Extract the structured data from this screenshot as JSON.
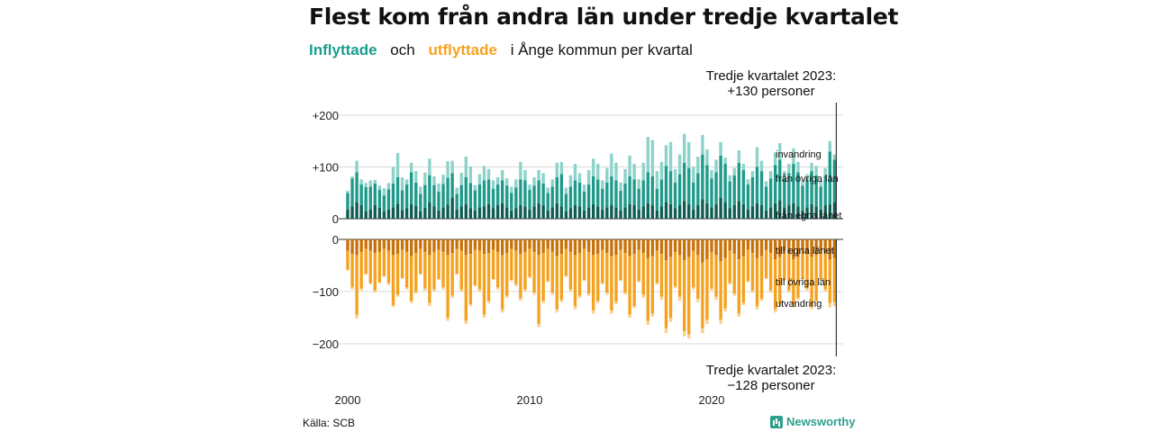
{
  "title": "Flest kom från andra län under tredje kvartalet",
  "subtitle": {
    "in_label": "Inflyttade",
    "and": "och",
    "out_label": "utflyttade",
    "rest": "i Ånge kommun per kvartal"
  },
  "annotations": {
    "top": [
      "Tredje kvartalet 2023:",
      "+130 personer"
    ],
    "bottom": [
      "Tredje kvartalet 2023:",
      "−128 personer"
    ]
  },
  "source": "Källa: SCB",
  "brand": "Newsworthy",
  "colors": {
    "in_egna": "#0e5c52",
    "in_ovriga": "#1f9a8a",
    "in_invandring": "#8dd3c9",
    "out_egna": "#c8720a",
    "out_ovriga": "#f5a21e",
    "out_utvandring": "#fbd08f",
    "grid": "#d9d9d9"
  },
  "chart_data": {
    "type": "bar",
    "stacked": true,
    "x_start": 2000,
    "periods_per_year": 4,
    "x_ticks": [
      "2000",
      "2010",
      "2020"
    ],
    "y_ticks": [
      "+200",
      "+100",
      "0",
      "0",
      "−100",
      "−200"
    ],
    "ylim_in": [
      0,
      220
    ],
    "ylim_out": [
      -220,
      0
    ],
    "grid": true,
    "series_labels": [
      "invandring",
      "från övriga län",
      "från egna länet",
      "till egna länet",
      "till övriga län",
      "utvandring"
    ],
    "in_egna": [
      18,
      24,
      32,
      26,
      15,
      18,
      26,
      21,
      14,
      18,
      22,
      29,
      17,
      20,
      28,
      25,
      14,
      21,
      32,
      24,
      16,
      22,
      27,
      40,
      18,
      24,
      28,
      20,
      16,
      22,
      24,
      28,
      20,
      26,
      30,
      22,
      16,
      20,
      26,
      24,
      18,
      24,
      30,
      26,
      16,
      22,
      30,
      24,
      14,
      20,
      26,
      24,
      16,
      22,
      28,
      24,
      18,
      22,
      26,
      22,
      16,
      22,
      28,
      26,
      18,
      24,
      30,
      26,
      16,
      24,
      32,
      28,
      20,
      26,
      34,
      28,
      18,
      26,
      38,
      30,
      22,
      28,
      40,
      32,
      20,
      26,
      34,
      28,
      18,
      24,
      30,
      26,
      16,
      22,
      30,
      36,
      22,
      26,
      30,
      24,
      16,
      22,
      28,
      24,
      18,
      26,
      28,
      32
    ],
    "in_ovriga": [
      32,
      54,
      58,
      40,
      46,
      44,
      42,
      35,
      31,
      39,
      46,
      51,
      38,
      46,
      62,
      45,
      34,
      44,
      52,
      41,
      36,
      45,
      52,
      48,
      30,
      41,
      52,
      49,
      39,
      44,
      50,
      48,
      38,
      40,
      44,
      42,
      34,
      40,
      50,
      50,
      38,
      40,
      44,
      42,
      34,
      40,
      50,
      62,
      34,
      42,
      48,
      46,
      36,
      44,
      54,
      52,
      40,
      48,
      56,
      52,
      38,
      46,
      54,
      50,
      40,
      50,
      60,
      56,
      42,
      52,
      70,
      64,
      50,
      60,
      74,
      70,
      52,
      62,
      86,
      74,
      56,
      62,
      82,
      74,
      52,
      58,
      74,
      66,
      48,
      56,
      70,
      66,
      46,
      56,
      74,
      78,
      56,
      62,
      76,
      66,
      48,
      54,
      64,
      60,
      44,
      58,
      102,
      82
    ],
    "in_invandring": [
      4,
      4,
      22,
      10,
      8,
      12,
      7,
      8,
      14,
      12,
      32,
      47,
      25,
      10,
      18,
      22,
      14,
      24,
      32,
      17,
      16,
      18,
      32,
      24,
      12,
      24,
      40,
      32,
      10,
      20,
      28,
      20,
      16,
      14,
      20,
      14,
      12,
      16,
      34,
      20,
      10,
      16,
      20,
      20,
      10,
      14,
      28,
      24,
      12,
      22,
      32,
      18,
      14,
      28,
      34,
      30,
      16,
      28,
      44,
      34,
      16,
      28,
      40,
      30,
      18,
      34,
      68,
      70,
      34,
      34,
      40,
      56,
      26,
      38,
      56,
      50,
      30,
      32,
      38,
      30,
      16,
      24,
      26,
      12,
      12,
      14,
      24,
      12,
      10,
      12,
      38,
      20,
      10,
      14,
      24,
      32,
      14,
      18,
      30,
      20,
      10,
      10,
      16,
      18,
      12,
      14,
      20,
      10
    ],
    "out_egna": [
      22,
      28,
      30,
      24,
      18,
      22,
      26,
      24,
      18,
      22,
      30,
      28,
      20,
      24,
      32,
      26,
      18,
      24,
      30,
      24,
      20,
      24,
      30,
      26,
      18,
      22,
      30,
      28,
      20,
      22,
      28,
      26,
      20,
      24,
      30,
      26,
      18,
      22,
      28,
      24,
      18,
      24,
      30,
      26,
      18,
      24,
      32,
      28,
      18,
      24,
      30,
      26,
      18,
      24,
      30,
      28,
      20,
      26,
      32,
      30,
      20,
      26,
      32,
      28,
      20,
      26,
      36,
      32,
      22,
      28,
      40,
      34,
      24,
      30,
      40,
      34,
      22,
      30,
      44,
      38,
      24,
      30,
      42,
      36,
      22,
      28,
      38,
      32,
      20,
      26,
      36,
      32,
      20,
      26,
      38,
      34,
      22,
      28,
      38,
      34,
      20,
      26,
      34,
      30,
      20,
      26,
      38,
      36
    ],
    "out_ovriga": [
      36,
      64,
      114,
      70,
      48,
      62,
      72,
      58,
      52,
      62,
      96,
      78,
      54,
      68,
      86,
      74,
      48,
      70,
      92,
      72,
      56,
      68,
      120,
      82,
      48,
      74,
      126,
      96,
      68,
      74,
      116,
      92,
      56,
      68,
      104,
      82,
      60,
      64,
      84,
      72,
      54,
      78,
      132,
      92,
      62,
      78,
      102,
      88,
      52,
      72,
      98,
      82,
      60,
      80,
      106,
      90,
      64,
      76,
      104,
      90,
      58,
      76,
      112,
      100,
      60,
      80,
      120,
      110,
      62,
      82,
      130,
      116,
      66,
      80,
      136,
      148,
      70,
      84,
      126,
      116,
      70,
      80,
      112,
      96,
      62,
      76,
      104,
      90,
      60,
      72,
      92,
      82,
      54,
      72,
      96,
      90,
      56,
      70,
      86,
      78,
      56,
      68,
      94,
      88,
      56,
      70,
      84,
      84
    ],
    "out_utvandring": [
      2,
      4,
      8,
      4,
      2,
      2,
      4,
      2,
      2,
      4,
      4,
      4,
      2,
      4,
      4,
      4,
      2,
      4,
      6,
      4,
      2,
      4,
      6,
      4,
      2,
      4,
      6,
      4,
      2,
      4,
      6,
      4,
      2,
      4,
      6,
      4,
      2,
      4,
      6,
      4,
      2,
      4,
      6,
      4,
      2,
      4,
      6,
      4,
      2,
      4,
      6,
      4,
      2,
      4,
      6,
      4,
      2,
      4,
      6,
      4,
      2,
      4,
      6,
      4,
      2,
      6,
      8,
      6,
      2,
      6,
      10,
      8,
      4,
      8,
      10,
      8,
      4,
      6,
      10,
      8,
      4,
      6,
      8,
      6,
      2,
      4,
      6,
      4,
      2,
      4,
      6,
      4,
      2,
      4,
      6,
      4,
      2,
      4,
      6,
      4,
      2,
      4,
      6,
      4,
      2,
      4,
      8,
      8
    ]
  }
}
